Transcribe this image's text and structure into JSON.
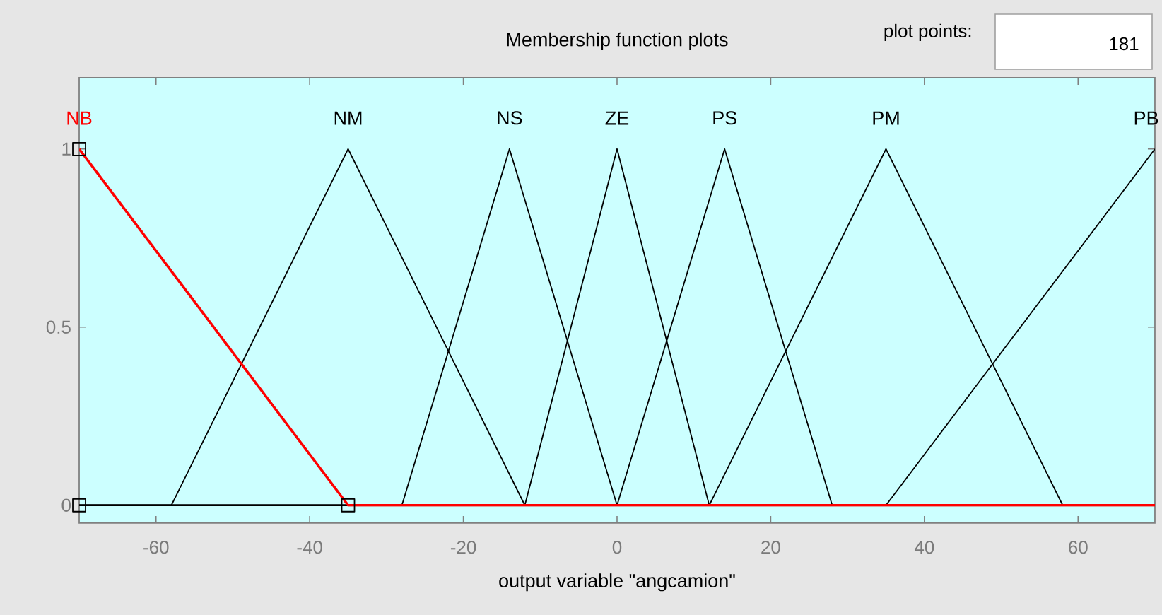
{
  "chart_data": {
    "type": "line",
    "title": "Membership function plots",
    "xlabel": "output variable \"angcamion\"",
    "xlim": [
      -70,
      70
    ],
    "ylim": [
      -0.05,
      1.2
    ],
    "xticks": [
      -60,
      -40,
      -20,
      0,
      20,
      40,
      60
    ],
    "yticks": [
      0,
      0.5,
      1
    ],
    "annotations": [
      "plot points:",
      "181"
    ],
    "series": [
      {
        "name": "NB",
        "color": "#ff0000",
        "x": [
          -70,
          -35,
          70
        ],
        "values": [
          1,
          0,
          0
        ]
      },
      {
        "name": "NM",
        "color": "#000000",
        "x": [
          -70,
          -58,
          -35,
          -12,
          70
        ],
        "values": [
          0,
          0,
          1,
          0,
          0
        ]
      },
      {
        "name": "NS",
        "color": "#000000",
        "x": [
          -70,
          -28,
          -14,
          0,
          70
        ],
        "values": [
          0,
          0,
          1,
          0,
          0
        ]
      },
      {
        "name": "ZE",
        "color": "#000000",
        "x": [
          -70,
          -12,
          0,
          12,
          70
        ],
        "values": [
          0,
          0,
          1,
          0,
          0
        ]
      },
      {
        "name": "PS",
        "color": "#000000",
        "x": [
          -70,
          0,
          14,
          28,
          70
        ],
        "values": [
          0,
          0,
          1,
          0,
          0
        ]
      },
      {
        "name": "PM",
        "color": "#000000",
        "x": [
          -70,
          12,
          35,
          58,
          70
        ],
        "values": [
          0,
          0,
          1,
          0,
          0
        ]
      },
      {
        "name": "PB",
        "color": "#000000",
        "x": [
          -70,
          35,
          70
        ],
        "values": [
          0,
          0,
          1
        ]
      },
      {
        "type": "scatter",
        "marker": "square",
        "color": "#000000",
        "x": [
          -70,
          -70,
          -35
        ],
        "values": [
          0,
          1,
          0
        ]
      }
    ]
  }
}
